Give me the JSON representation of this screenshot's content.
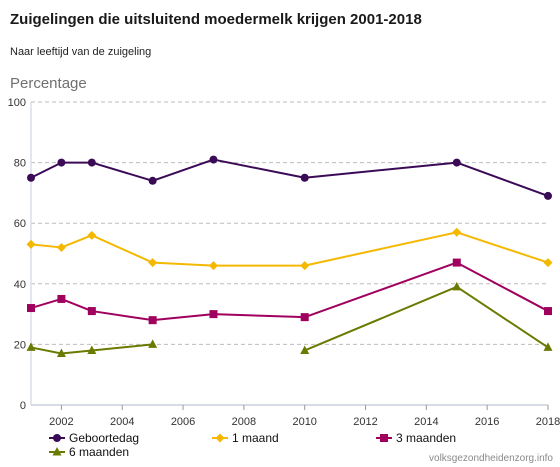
{
  "chart_data": {
    "type": "line",
    "title": "Zuigelingen die uitsluitend moedermelk krijgen 2001-2018",
    "subtitle": "Naar leeftijd van de zuigeling",
    "ylabel": "Percentage",
    "xlabel": "",
    "xlim": [
      2001,
      2018
    ],
    "ylim": [
      0,
      100
    ],
    "x_ticks": [
      2002,
      2004,
      2006,
      2008,
      2010,
      2012,
      2014,
      2016,
      2018
    ],
    "y_ticks": [
      0,
      20,
      40,
      60,
      80,
      100
    ],
    "grid": "horizontal dashed",
    "legend_position": "bottom",
    "series": [
      {
        "name": "Geboortedag",
        "color": "#3b0a57",
        "marker": "circle",
        "points": [
          [
            2001,
            75
          ],
          [
            2002,
            80
          ],
          [
            2003,
            80
          ],
          [
            2005,
            74
          ],
          [
            2007,
            81
          ],
          [
            2010,
            75
          ],
          [
            2015,
            80
          ],
          [
            2018,
            69
          ]
        ]
      },
      {
        "name": "1 maand",
        "color": "#f5b800",
        "marker": "diamond",
        "points": [
          [
            2001,
            53
          ],
          [
            2002,
            52
          ],
          [
            2003,
            56
          ],
          [
            2005,
            47
          ],
          [
            2007,
            46
          ],
          [
            2010,
            46
          ],
          [
            2015,
            57
          ],
          [
            2018,
            47
          ]
        ]
      },
      {
        "name": "3 maanden",
        "color": "#a0005e",
        "marker": "square",
        "points": [
          [
            2001,
            32
          ],
          [
            2002,
            35
          ],
          [
            2003,
            31
          ],
          [
            2005,
            28
          ],
          [
            2007,
            30
          ],
          [
            2010,
            29
          ],
          [
            2015,
            47
          ],
          [
            2018,
            31
          ]
        ]
      },
      {
        "name": "6 maanden",
        "color": "#6b7a00",
        "marker": "triangle",
        "segments": [
          [
            [
              2001,
              19
            ],
            [
              2002,
              17
            ],
            [
              2003,
              18
            ],
            [
              2005,
              20
            ]
          ],
          [
            [
              2010,
              18
            ],
            [
              2015,
              39
            ],
            [
              2018,
              19
            ]
          ]
        ]
      }
    ]
  },
  "credit": "volksgezondheidenzorg.info"
}
